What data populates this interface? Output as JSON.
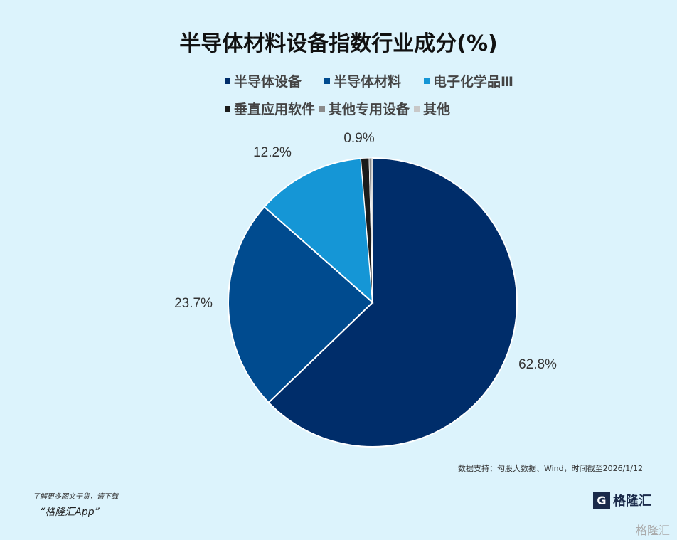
{
  "chart_data": {
    "type": "pie",
    "title": "半导体材料设备指数行业成分(%)",
    "legend_position": "top",
    "start_angle": "top",
    "direction": "clockwise",
    "series": [
      {
        "name": "半导体设备",
        "value": 62.8,
        "label": "62.8%",
        "color": "#002d6a"
      },
      {
        "name": "半导体材料",
        "value": 23.7,
        "label": "23.7%",
        "color": "#004b8f"
      },
      {
        "name": "电子化学品Ⅲ",
        "value": 12.2,
        "label": "12.2%",
        "color": "#1596d6"
      },
      {
        "name": "垂直应用软件",
        "value": 0.9,
        "label": "0.9%",
        "color": "#1b1b1b"
      },
      {
        "name": "其他专用设备",
        "value": 0.2,
        "label": "",
        "color": "#8a8a8a"
      },
      {
        "name": "其他",
        "value": 0.2,
        "label": "",
        "color": "#c8c8c8"
      }
    ]
  },
  "footer": {
    "source": "数据支持：勾股大数据、Wind，时间截至2026/1/12",
    "promo_line1": "了解更多图文干货，请下载",
    "promo_line2": "“格隆汇App”",
    "logo": "格隆汇",
    "watermark": "格隆汇"
  }
}
